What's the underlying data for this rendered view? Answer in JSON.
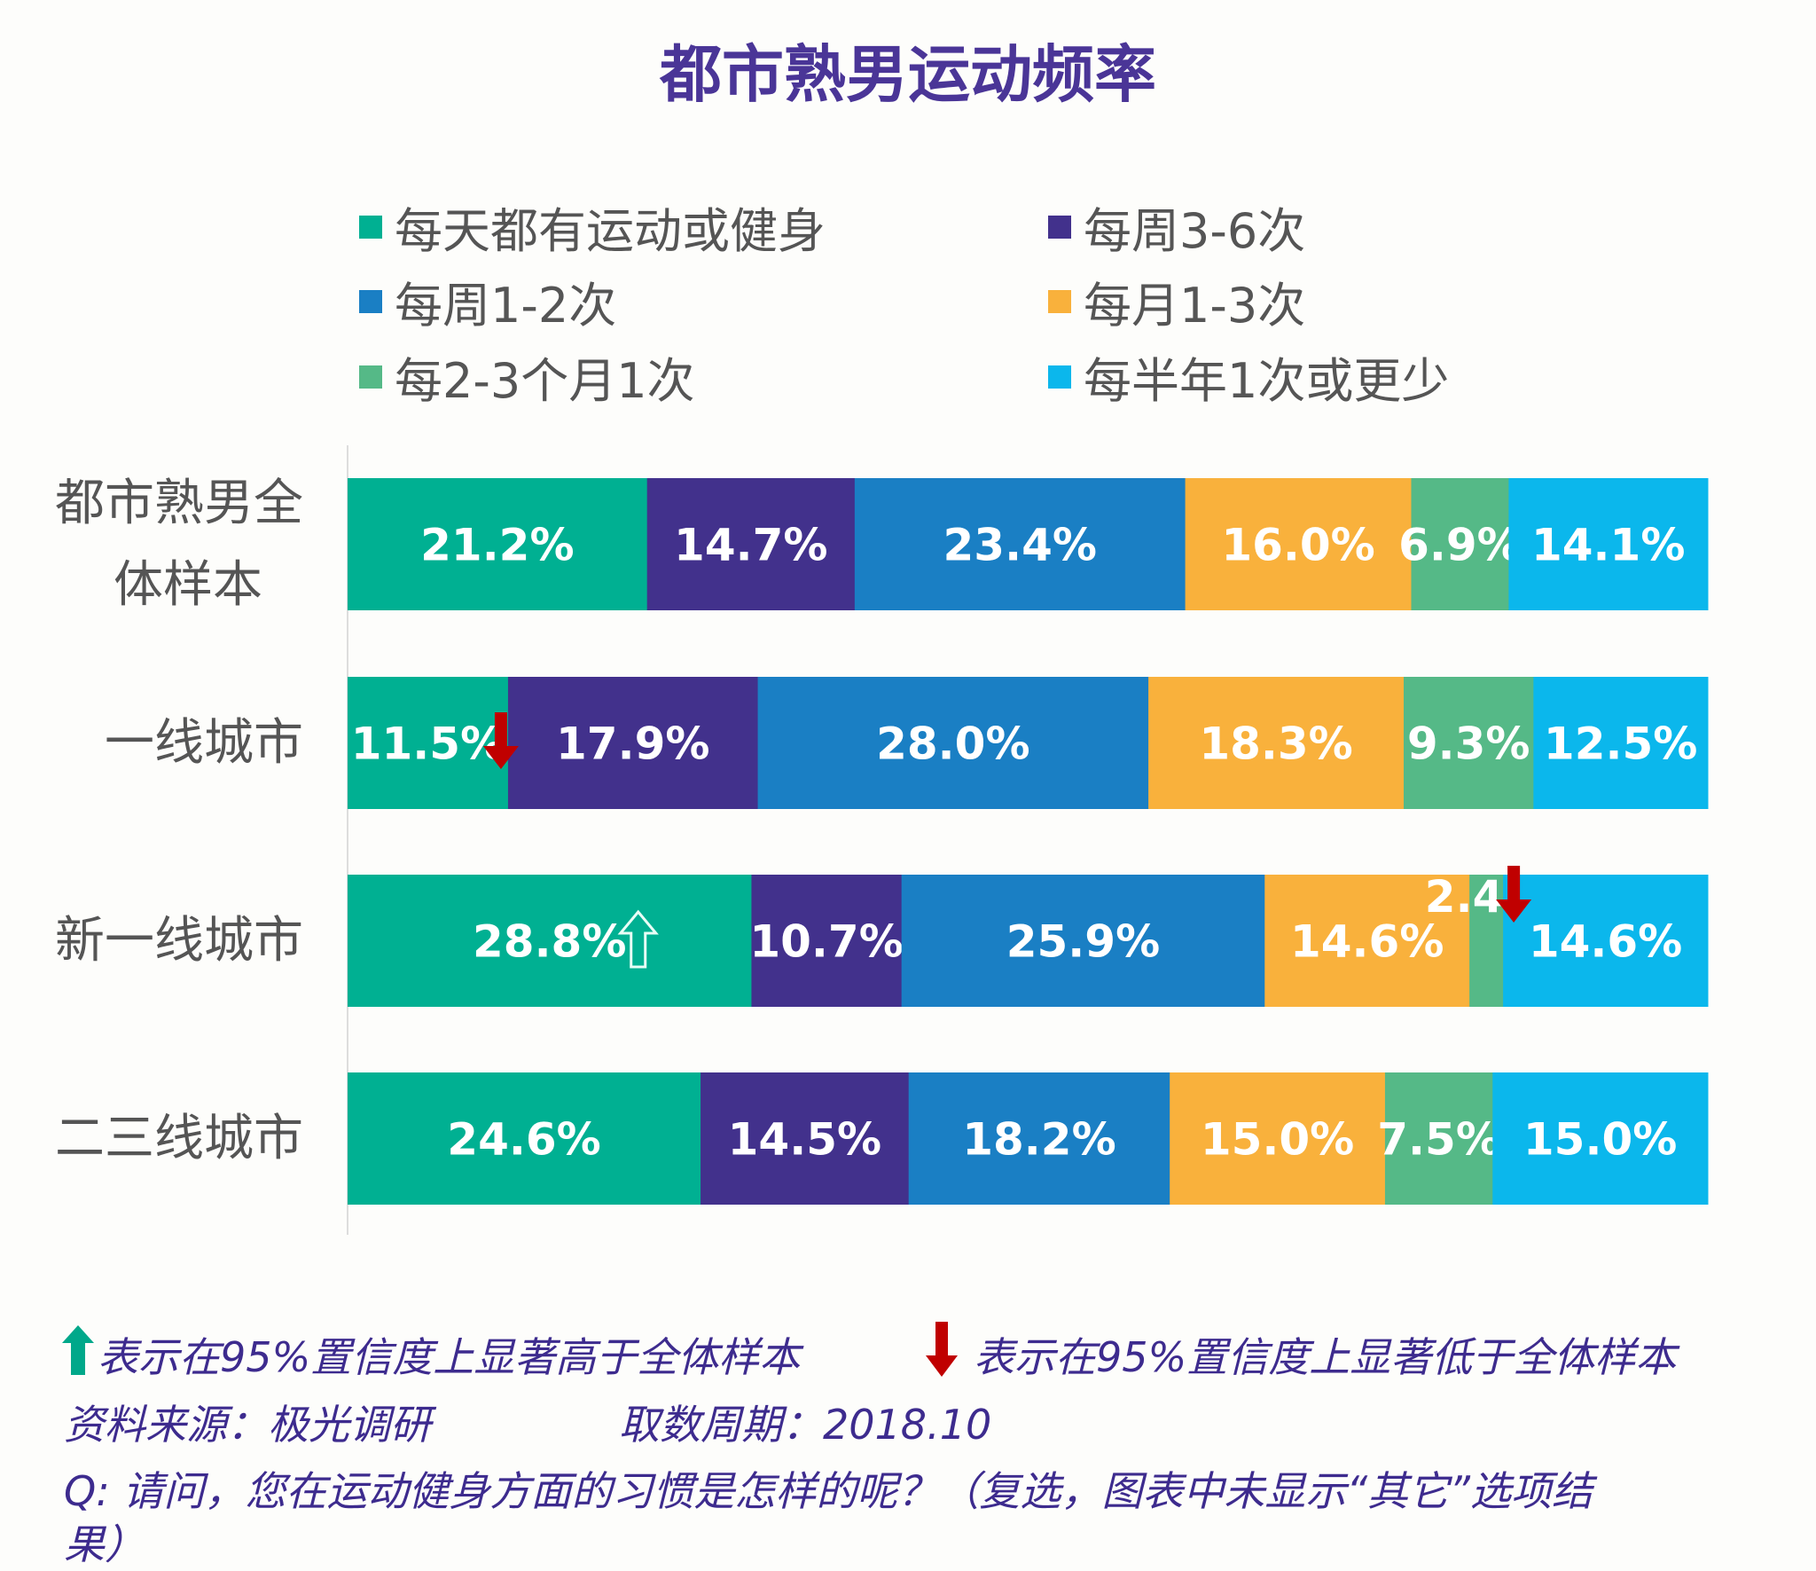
{
  "chart_data": {
    "type": "bar",
    "orientation": "horizontal",
    "stacked": true,
    "title": "都市熟男运动频率",
    "categories": [
      "都市熟男全体样本",
      "一线城市",
      "新一线城市",
      "二三线城市"
    ],
    "category_lines": [
      [
        "都市熟男全",
        "体样本"
      ],
      [
        "一线城市"
      ],
      [
        "新一线城市"
      ],
      [
        "二三线城市"
      ]
    ],
    "series": [
      {
        "name": "每天都有运动或健身",
        "color": "#00b092",
        "values": [
          21.2,
          11.5,
          28.8,
          24.6
        ],
        "labels": [
          "21.2%",
          "11.5%",
          "28.8%",
          "24.6%"
        ]
      },
      {
        "name": "每周3-6次",
        "color": "#42318c",
        "values": [
          14.7,
          17.9,
          10.7,
          14.5
        ],
        "labels": [
          "14.7%",
          "17.9%",
          "10.7%",
          "14.5%"
        ]
      },
      {
        "name": "每周1-2次",
        "color": "#1a7fc4",
        "values": [
          23.4,
          28.0,
          25.9,
          18.2
        ],
        "labels": [
          "23.4%",
          "28.0%",
          "25.9%",
          "18.2%"
        ]
      },
      {
        "name": "每月1-3次",
        "color": "#f9b13c",
        "values": [
          16.0,
          18.3,
          14.6,
          15.0
        ],
        "labels": [
          "16.0%",
          "18.3%",
          "14.6%",
          "15.0%"
        ]
      },
      {
        "name": "每2-3个月1次",
        "color": "#55b987",
        "values": [
          6.9,
          9.3,
          2.4,
          7.5
        ],
        "labels": [
          "6.9%",
          "9.3%",
          "2.4%",
          "7.5%"
        ]
      },
      {
        "name": "每半年1次或更少",
        "color": "#0bb7ec",
        "values": [
          14.1,
          12.5,
          14.6,
          15.0
        ],
        "labels": [
          "14.1%",
          "12.5%",
          "14.6%",
          "15.0%"
        ]
      }
    ],
    "significance_markers": [
      {
        "category": "一线城市",
        "series": "每天都有运动或健身",
        "direction": "down"
      },
      {
        "category": "新一线城市",
        "series": "每天都有运动或健身",
        "direction": "up"
      },
      {
        "category": "新一线城市",
        "series": "每2-3个月1次",
        "direction": "down"
      }
    ],
    "legend_position": "top",
    "grid": false
  },
  "colors": {
    "title": "#4a3597",
    "up_arrow": "#00a88a",
    "down_arrow": "#c00000",
    "footnote": "#3d2b8e"
  },
  "footnotes": {
    "up_legend": "表示在95%置信度上显著高于全体样本",
    "down_legend": "表示在95%置信度上显著低于全体样本",
    "source": "资料来源：极光调研",
    "period": "取数周期：2018.10",
    "question_line1": "Q: 请问，您在运动健身方面的习惯是怎样的呢？（复选，图表中未显示“其它”选项结",
    "question_line2": "果）"
  }
}
